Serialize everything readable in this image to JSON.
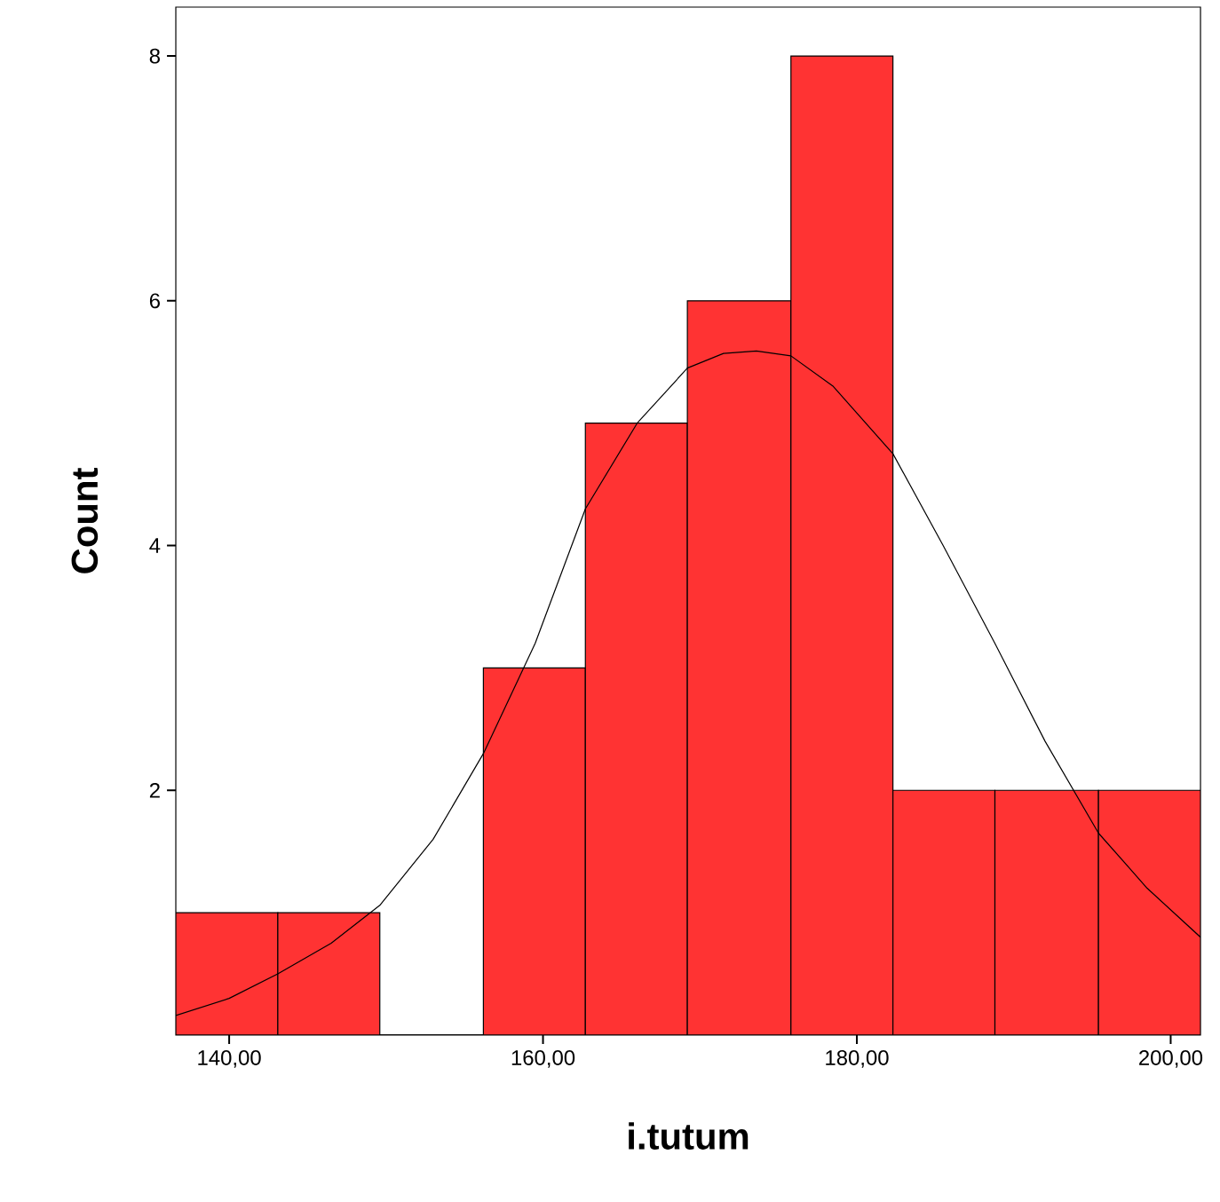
{
  "chart_data": {
    "type": "histogram",
    "xlabel": "i.tutum",
    "ylabel": "Count",
    "bins": [
      136.6,
      143.1,
      149.6,
      156.2,
      162.7,
      169.2,
      175.8,
      182.3,
      188.8,
      195.4,
      201.9
    ],
    "values": [
      1,
      1,
      0,
      3,
      5,
      6,
      8,
      2,
      2,
      2
    ],
    "color": "#ff3333",
    "series": [
      {
        "type": "line",
        "color": "#000000",
        "x": [
          136.6,
          140.0,
          143.1,
          146.5,
          149.6,
          153.0,
          156.2,
          159.5,
          162.7,
          166.0,
          169.2,
          171.5,
          173.6,
          175.8,
          178.5,
          182.3,
          185.5,
          188.8,
          192.0,
          195.4,
          198.5,
          201.9
        ],
        "values": [
          0.16,
          0.3,
          0.5,
          0.75,
          1.06,
          1.6,
          2.3,
          3.2,
          4.3,
          5.0,
          5.45,
          5.57,
          5.59,
          5.55,
          5.3,
          4.75,
          4.0,
          3.2,
          2.4,
          1.65,
          1.2,
          0.8
        ]
      }
    ],
    "xlim": [
      136.6,
      201.9
    ],
    "ylim": [
      0,
      8.4
    ],
    "xticks": [
      {
        "value": 140,
        "label": "140,00"
      },
      {
        "value": 160,
        "label": "160,00"
      },
      {
        "value": 180,
        "label": "180,00"
      },
      {
        "value": 200,
        "label": "200,00"
      }
    ],
    "yticks": [
      2,
      4,
      6,
      8
    ]
  }
}
